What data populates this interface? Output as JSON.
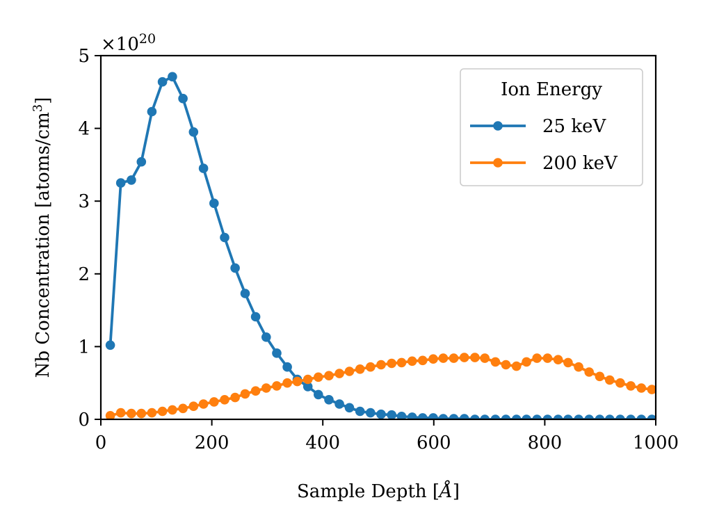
{
  "chart_data": {
    "type": "line",
    "xlabel_main": "Sample Depth [",
    "xlabel_unit": "Å",
    "xlabel_end": "]",
    "ylabel_main": "Nb Concentration [atoms/cm",
    "ylabel_sup": "3",
    "ylabel_end": "]",
    "offset_base": "×10",
    "offset_exp": "20",
    "xlim": [
      0,
      1000
    ],
    "ylim": [
      0,
      5
    ],
    "x_ticks": [
      "0",
      "200",
      "400",
      "600",
      "800",
      "1000"
    ],
    "y_ticks": [
      "0",
      "1",
      "2",
      "3",
      "4",
      "5"
    ],
    "grid": false,
    "legend": {
      "title": "Ion Energy",
      "placement": "top-right"
    },
    "series": [
      {
        "name": "25 keV",
        "color": "#1f77b4",
        "x": [
          17,
          36,
          55,
          73,
          92,
          111,
          129,
          148,
          167,
          185,
          204,
          223,
          242,
          260,
          279,
          298,
          317,
          336,
          354,
          373,
          392,
          411,
          430,
          448,
          467,
          486,
          505,
          524,
          542,
          561,
          580,
          599,
          617,
          636,
          655,
          674,
          692,
          711,
          730,
          749,
          767,
          786,
          805,
          824,
          842,
          861,
          880,
          899,
          917,
          936,
          955,
          974,
          993
        ],
        "values": [
          1.02,
          3.25,
          3.29,
          3.54,
          4.23,
          4.64,
          4.71,
          4.41,
          3.95,
          3.45,
          2.97,
          2.5,
          2.08,
          1.73,
          1.41,
          1.13,
          0.91,
          0.72,
          0.55,
          0.45,
          0.34,
          0.27,
          0.21,
          0.16,
          0.11,
          0.09,
          0.07,
          0.06,
          0.04,
          0.03,
          0.02,
          0.02,
          0.01,
          0.01,
          0.01,
          0.0,
          0.0,
          0.0,
          0.0,
          0.0,
          0.0,
          0.0,
          0.0,
          0.0,
          0.0,
          0.0,
          0.0,
          0.0,
          0.0,
          0.0,
          0.0,
          0.0,
          0.0
        ]
      },
      {
        "name": "200 keV",
        "color": "#ff7f0e",
        "x": [
          17,
          36,
          55,
          73,
          92,
          111,
          129,
          148,
          167,
          185,
          204,
          223,
          242,
          260,
          279,
          298,
          317,
          336,
          354,
          373,
          392,
          411,
          430,
          448,
          467,
          486,
          505,
          524,
          542,
          561,
          580,
          599,
          617,
          636,
          655,
          674,
          692,
          711,
          730,
          749,
          767,
          786,
          805,
          824,
          842,
          861,
          880,
          899,
          917,
          936,
          955,
          974,
          993
        ],
        "values": [
          0.05,
          0.09,
          0.08,
          0.08,
          0.09,
          0.11,
          0.13,
          0.15,
          0.18,
          0.21,
          0.24,
          0.27,
          0.3,
          0.35,
          0.39,
          0.43,
          0.46,
          0.5,
          0.52,
          0.55,
          0.58,
          0.6,
          0.63,
          0.66,
          0.69,
          0.72,
          0.75,
          0.77,
          0.78,
          0.8,
          0.81,
          0.83,
          0.84,
          0.84,
          0.85,
          0.85,
          0.84,
          0.79,
          0.75,
          0.73,
          0.79,
          0.84,
          0.84,
          0.82,
          0.78,
          0.72,
          0.65,
          0.59,
          0.54,
          0.5,
          0.46,
          0.43,
          0.41
        ]
      }
    ]
  }
}
